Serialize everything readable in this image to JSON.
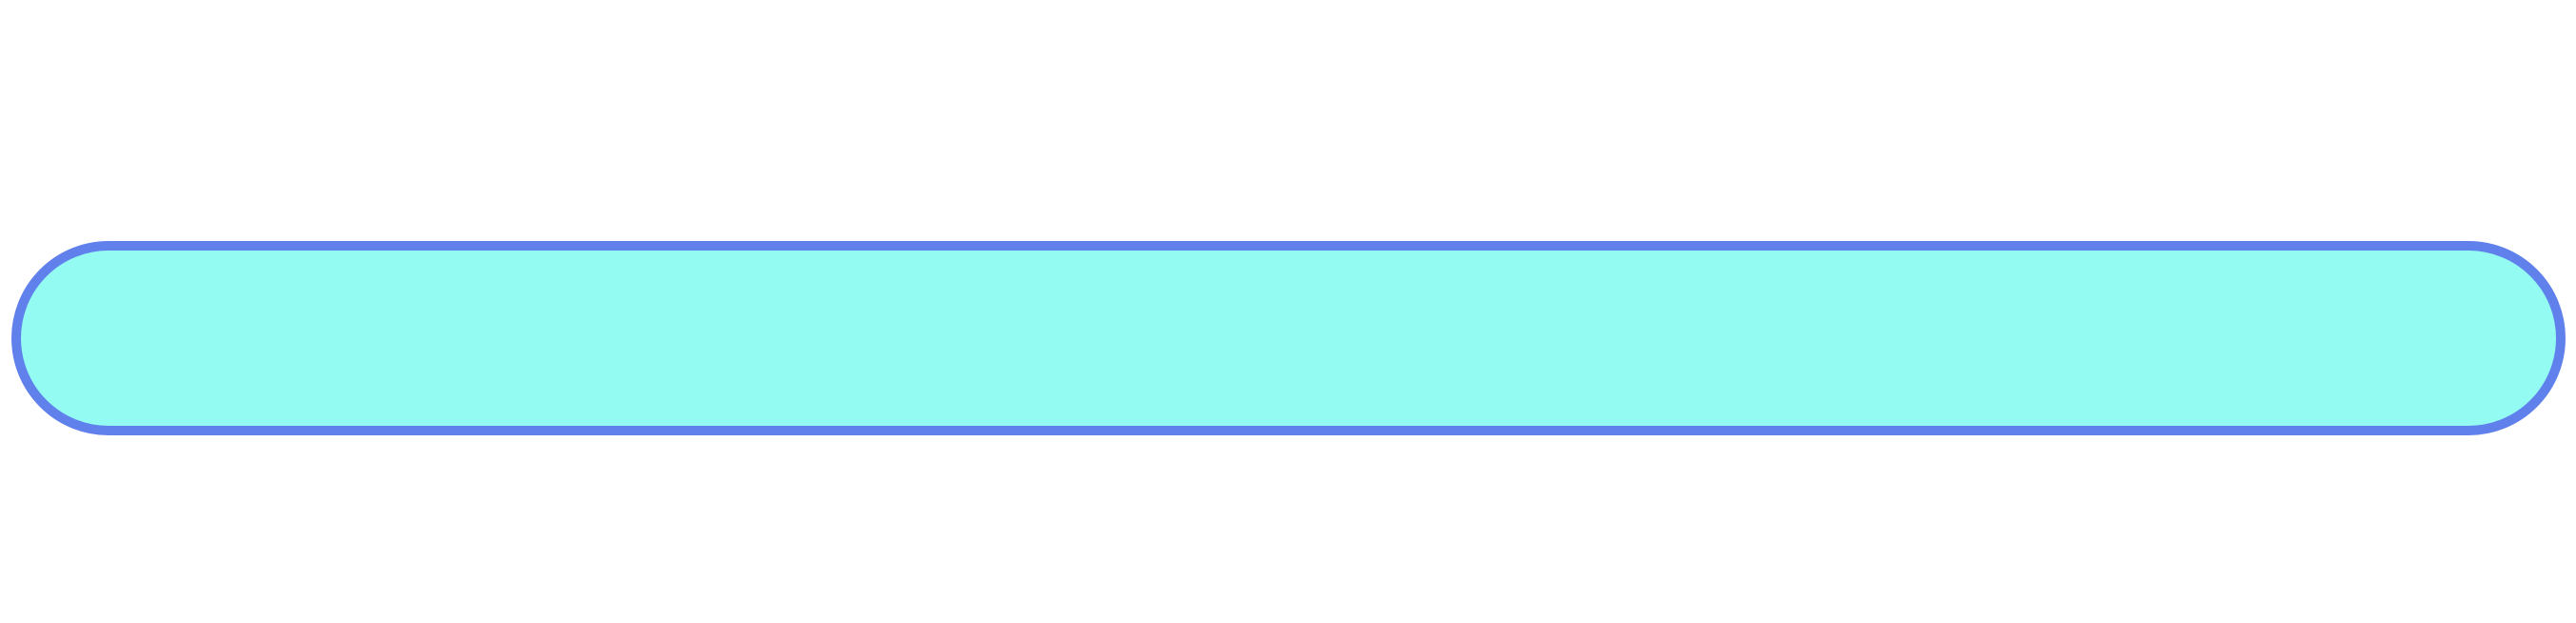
{
  "pill": {
    "fill_color": "#94fbf2",
    "border_color": "#6080ec"
  }
}
